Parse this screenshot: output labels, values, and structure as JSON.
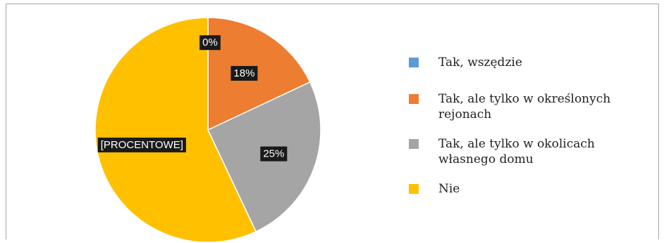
{
  "chart_data": {
    "type": "pie",
    "title": "",
    "series": [
      {
        "name": "Tak, wszędzie",
        "value": 0,
        "label": "0%",
        "color": "#5b9bd5"
      },
      {
        "name": "Tak, ale tylko w określonych rejonach",
        "value": 18,
        "label": "18%",
        "color": "#ed7d31"
      },
      {
        "name": "Tak, ale tylko w okolicach własnego domu",
        "value": 25,
        "label": "25%",
        "color": "#a5a5a5"
      },
      {
        "name": "Nie",
        "value": 57,
        "label": "[PROCENTOWE]",
        "color": "#ffc000"
      }
    ],
    "legend": {
      "placement": "right",
      "lines": [
        [
          "Tak, wszędzie"
        ],
        [
          "Tak, ale tylko w określonych",
          "rejonach"
        ],
        [
          "Tak, ale tylko w okolicach",
          "własnego domu"
        ],
        [
          "Nie"
        ]
      ]
    }
  }
}
